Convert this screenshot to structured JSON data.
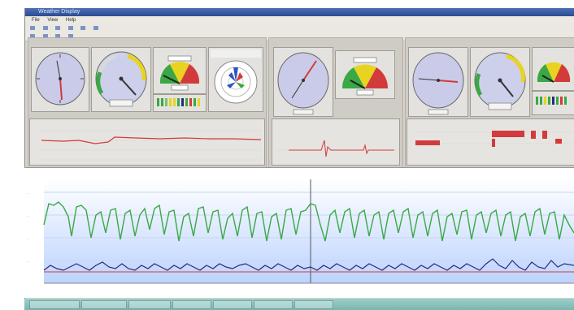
{
  "window": {
    "title": "Weather Display"
  },
  "menu": [
    "File",
    "View",
    "Help"
  ],
  "toolbar_row1": [],
  "toolbar_row2": [],
  "stations": [
    {
      "name": "",
      "wind_level": 0.72,
      "pressure_level": 0.28
    },
    {
      "name": "",
      "wind_level": 0.55,
      "pressure_level": 0.3
    },
    {
      "name": "",
      "wind_level": 0.6,
      "pressure_level": 0.35
    }
  ],
  "graph": {
    "header": "",
    "series_colors": [
      "#3aa844",
      "#2a2a80",
      "#c0392b"
    ]
  },
  "colors": {
    "window": "#d6d3ce",
    "titlebar": "#2f53a1",
    "plot": "#cfe0ff",
    "green": "#3aa844",
    "navy": "#222266",
    "red": "#d23b3b"
  }
}
